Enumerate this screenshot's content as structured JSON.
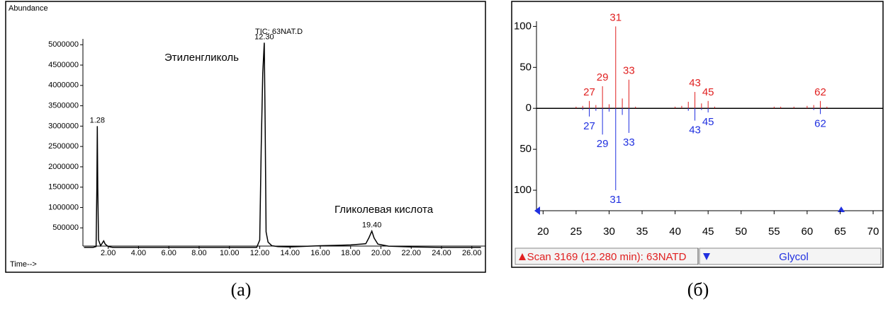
{
  "chart_data": [
    {
      "type": "line",
      "title": "TIC: 63NAT.D",
      "ylabel": "Abundance",
      "xlabel": "Time-->",
      "caption": "(a)",
      "color": "#000000",
      "x": [
        0.4,
        1.0,
        1.2,
        1.25,
        1.28,
        1.31,
        1.36,
        1.5,
        1.7,
        1.8,
        2.0,
        2.3,
        3,
        5,
        8,
        10,
        11.8,
        12.0,
        12.1,
        12.2,
        12.3,
        12.36,
        12.42,
        12.55,
        12.8,
        13.2,
        14,
        16,
        17,
        18,
        19,
        19.2,
        19.4,
        19.55,
        19.8,
        20.5,
        22,
        24,
        26.6
      ],
      "values": [
        20000,
        20000,
        40000,
        1500000,
        3000000,
        1500000,
        200000,
        60000,
        180000,
        100000,
        40000,
        20000,
        20000,
        20000,
        20000,
        20000,
        20000,
        200000,
        2500000,
        4300000,
        5050000,
        3000000,
        400000,
        150000,
        60000,
        40000,
        30000,
        60000,
        70000,
        80000,
        110000,
        250000,
        420000,
        250000,
        100000,
        50000,
        30000,
        20000,
        20000
      ],
      "peak_labels": [
        1.28,
        {
          "value": 12.3,
          "label": "12.30"
        },
        {
          "value": 19.4,
          "label": "19.40"
        }
      ],
      "annotations": [
        "Этиленгликоль",
        "Гликолевая кислота"
      ],
      "xlim": [
        0.33,
        26.9
      ],
      "ylim": [
        0,
        5300000
      ],
      "xticks": [
        {
          "value": 2,
          "label": "2.00"
        },
        {
          "value": 4,
          "label": "4.00"
        },
        {
          "value": 6,
          "label": "6.00"
        },
        {
          "value": 8,
          "label": "8.00"
        },
        {
          "value": 10,
          "label": "10.00"
        },
        {
          "value": 12,
          "label": "12.00"
        },
        {
          "value": 14,
          "label": "14.00"
        },
        {
          "value": 16,
          "label": "16.00"
        },
        {
          "value": 18,
          "label": "18.00"
        },
        {
          "value": 20,
          "label": "20.00"
        },
        {
          "value": 22,
          "label": "22.00"
        },
        {
          "value": 24,
          "label": "24.00"
        },
        {
          "value": 26,
          "label": "26.00"
        }
      ],
      "yticks": [
        500000,
        1000000,
        1500000,
        2000000,
        2500000,
        3000000,
        3500000,
        4000000,
        4500000,
        5000000
      ]
    },
    {
      "type": "mirror",
      "caption": "(б)",
      "series": [
        {
          "name": "Scan 3169 (12.280 min): 63NATD",
          "color": "#e02020",
          "x": [
            27,
            29,
            31,
            33,
            43,
            45,
            62
          ],
          "values": [
            9,
            27,
            100,
            35,
            20,
            9,
            9
          ],
          "minor_x": [
            25,
            26,
            28,
            30,
            32,
            34,
            40,
            41,
            42,
            44,
            46,
            55,
            56,
            58,
            60,
            61,
            63
          ],
          "minor_values": [
            2,
            3,
            4,
            5,
            12,
            2,
            2,
            3,
            8,
            6,
            2,
            2,
            2,
            2,
            3,
            4,
            2
          ]
        },
        {
          "name": "Glycol",
          "color": "#2030e0",
          "x": [
            27,
            29,
            31,
            33,
            43,
            45,
            62
          ],
          "values": [
            -10,
            -32,
            -100,
            -30,
            -15,
            -5,
            -7
          ],
          "minor_x": [
            26,
            28,
            30,
            32,
            42,
            44,
            61
          ],
          "minor_values": [
            -2,
            -3,
            -4,
            -8,
            -3,
            -2,
            -2
          ]
        }
      ],
      "xlim": [
        19,
        71.5
      ],
      "ylim": [
        -125,
        115
      ],
      "xticks": [
        20,
        25,
        30,
        35,
        40,
        45,
        50,
        55,
        60,
        65,
        70
      ],
      "yticks": [
        100,
        50,
        0,
        {
          "value": -50,
          "label": "50"
        },
        {
          "value": -100,
          "label": "100"
        }
      ]
    }
  ]
}
